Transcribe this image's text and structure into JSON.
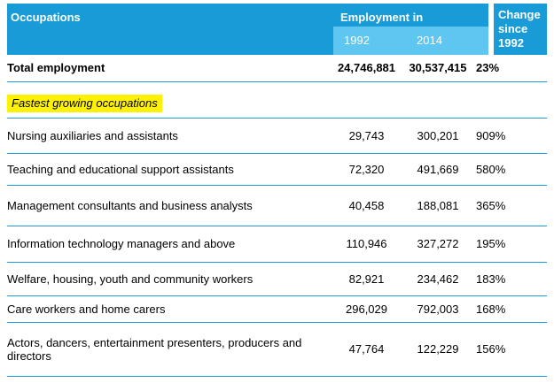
{
  "colors": {
    "header_blue": "#189BD7",
    "subheader_blue": "#5FC6F1",
    "divider_blue": "#1E9CD8",
    "highlight_yellow": "#FFF104"
  },
  "table": {
    "header": {
      "occupations": "Occupations",
      "employment_in": "Employment in",
      "year_1992": "1992",
      "year_2014": "2014",
      "change": "Change since 1992"
    },
    "total_row": {
      "name": "Total employment",
      "v1992": "24,746,881",
      "v2014": "30,537,415",
      "change": "23%"
    },
    "section_label": "Fastest growing occupations",
    "rows": [
      {
        "name": "Nursing auxiliaries and assistants",
        "v1992": "29,743",
        "v2014": "300,201",
        "change": "909%"
      },
      {
        "name": "Teaching and educational support assistants",
        "v1992": "72,320",
        "v2014": "491,669",
        "change": "580%"
      },
      {
        "name": "Management consultants and business analysts",
        "v1992": "40,458",
        "v2014": "188,081",
        "change": "365%"
      },
      {
        "name": "Information technology managers and above",
        "v1992": "110,946",
        "v2014": "327,272",
        "change": "195%"
      },
      {
        "name": "Welfare, housing, youth and community workers",
        "v1992": "82,921",
        "v2014": "234,462",
        "change": "183%"
      },
      {
        "name": "Care workers and home carers",
        "v1992": "296,029",
        "v2014": "792,003",
        "change": "168%"
      },
      {
        "name": "Actors, dancers, entertainment presenters, producers and directors",
        "v1992": "47,764",
        "v2014": "122,229",
        "change": "156%"
      }
    ]
  },
  "chart_data": {
    "type": "table",
    "title": "Occupations — Employment in 1992 and 2014 and change since 1992",
    "columns": [
      "Occupations",
      "Employment in 1992",
      "Employment in 2014",
      "Change since 1992"
    ],
    "total": [
      "Total employment",
      24746881,
      30537415,
      "23%"
    ],
    "section": "Fastest growing occupations",
    "rows": [
      [
        "Nursing auxiliaries and assistants",
        29743,
        300201,
        "909%"
      ],
      [
        "Teaching and educational support assistants",
        72320,
        491669,
        "580%"
      ],
      [
        "Management consultants and business analysts",
        40458,
        188081,
        "365%"
      ],
      [
        "Information technology managers and above",
        110946,
        327272,
        "195%"
      ],
      [
        "Welfare, housing, youth and community workers",
        82921,
        234462,
        "183%"
      ],
      [
        "Care workers and home carers",
        296029,
        792003,
        "168%"
      ],
      [
        "Actors, dancers, entertainment presenters, producers and directors",
        47764,
        122229,
        "156%"
      ]
    ]
  }
}
